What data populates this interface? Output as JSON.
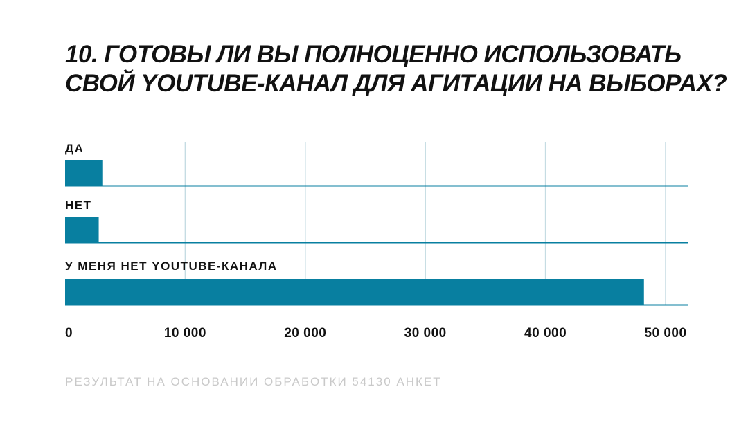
{
  "title": {
    "line1": "10. ГОТОВЫ ЛИ ВЫ ПОЛНОЦЕННО ИСПОЛЬЗОВАТЬ",
    "line2": "СВОЙ YOUTUBE-КАНАЛ ДЛЯ АГИТАЦИИ НА ВЫБОРАХ?"
  },
  "footnote": "РЕЗУЛЬТАТ НА ОСНОВАНИИ ОБРАБОТКИ 54130 АНКЕТ",
  "colors": {
    "bar": "#087fa0",
    "grid": "#c5dce3",
    "baseline": "#087fa0",
    "text": "#111111",
    "footnote": "#c9c9c9"
  },
  "chart_data": {
    "type": "bar",
    "orientation": "horizontal",
    "categories": [
      "ДА",
      "НЕТ",
      "У МЕНЯ НЕТ YOUTUBE-КАНАЛА"
    ],
    "values": [
      3100,
      2800,
      48200
    ],
    "xlim": [
      0,
      52000
    ],
    "xticks": [
      0,
      10000,
      20000,
      30000,
      40000,
      50000
    ],
    "xtick_labels": [
      "0",
      "10 000",
      "20 000",
      "30 000",
      "40 000",
      "50 000"
    ],
    "title": "10. ГОТОВЫ ЛИ ВЫ ПОЛНОЦЕННО ИСПОЛЬЗОВАТЬ СВОЙ YOUTUBE-КАНАЛ ДЛЯ АГИТАЦИИ НА ВЫБОРАХ?",
    "xlabel": "",
    "ylabel": "",
    "grid": true
  }
}
